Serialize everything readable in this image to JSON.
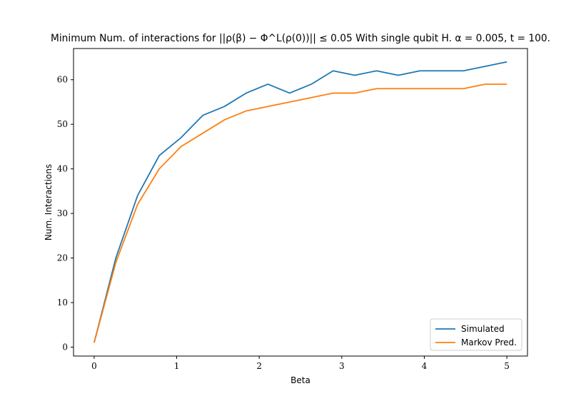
{
  "chart_data": {
    "type": "line",
    "title": "Minimum Num. of interactions for ||ρ(β) − Φ^L(ρ(0))|| ≤ 0.05 With single qubit H. α = 0.005, t = 100.",
    "xlabel": "Beta",
    "ylabel": "Num. Interactions",
    "xlim": [
      -0.25,
      5.25
    ],
    "ylim": [
      -2,
      67
    ],
    "xticks": [
      0,
      1,
      2,
      3,
      4,
      5
    ],
    "yticks": [
      0,
      10,
      20,
      30,
      40,
      50,
      60
    ],
    "x": [
      0.0,
      0.263,
      0.526,
      0.789,
      1.053,
      1.316,
      1.579,
      1.842,
      2.105,
      2.368,
      2.632,
      2.895,
      3.158,
      3.421,
      3.684,
      3.947,
      4.211,
      4.474,
      4.737,
      5.0
    ],
    "series": [
      {
        "name": "Simulated",
        "color": "#1f77b4",
        "values": [
          1,
          20,
          34,
          43,
          47,
          52,
          54,
          57,
          59,
          57,
          59,
          62,
          61,
          62,
          61,
          62,
          62,
          62,
          63,
          64
        ]
      },
      {
        "name": "Markov Pred.",
        "color": "#ff7f0e",
        "values": [
          1,
          19,
          32,
          40,
          45,
          48,
          51,
          53,
          54,
          55,
          56,
          57,
          57,
          58,
          58,
          58,
          58,
          58,
          59,
          59
        ]
      }
    ],
    "legend_position": "lower-right",
    "grid": false
  }
}
